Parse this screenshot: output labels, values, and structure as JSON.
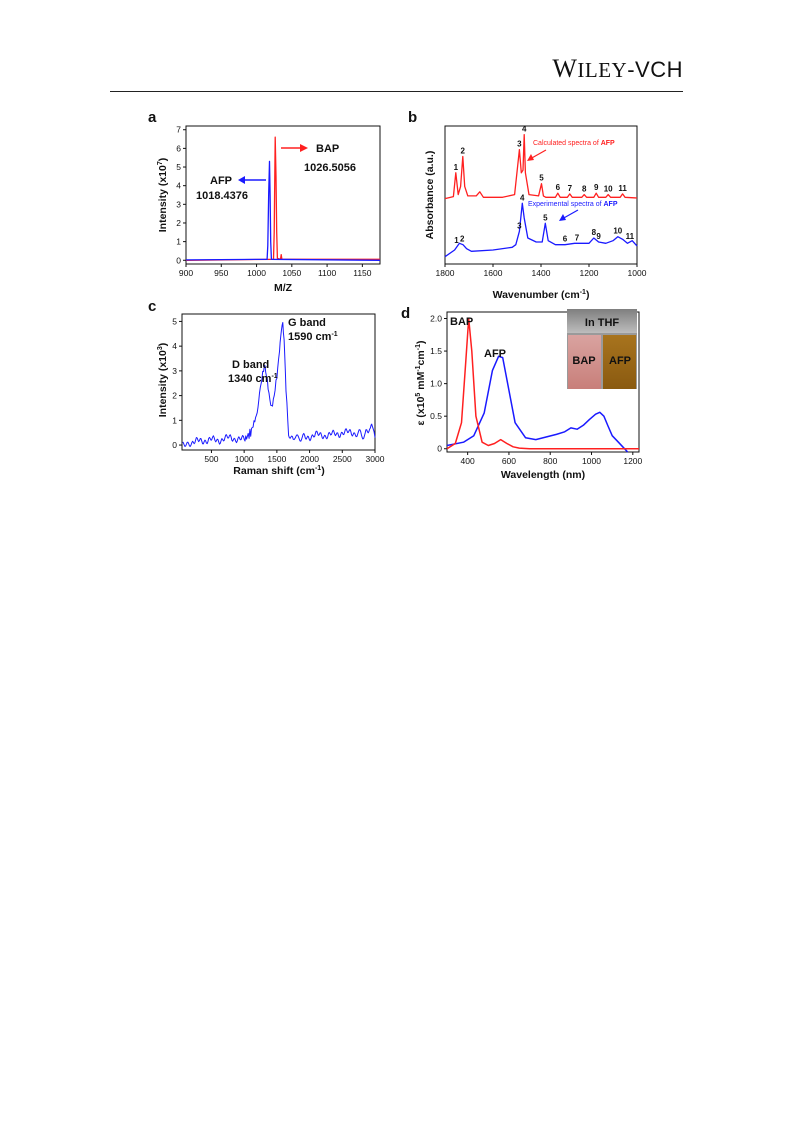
{
  "header": {
    "logo": {
      "W": "W",
      "ILEY": "ILEY",
      "vch": "-VCH"
    }
  },
  "chart_data": [
    {
      "panel": "a",
      "type": "line",
      "xlabel": "M/Z",
      "ylabel": "Intensity (x10",
      "ylabel_sup": "7",
      "ylabel_end": ")",
      "xlim": [
        900,
        1175
      ],
      "ylim": [
        -0.2,
        7.2
      ],
      "xticks": [
        900,
        950,
        1000,
        1050,
        1100,
        1150
      ],
      "yticks": [
        0,
        1,
        2,
        3,
        4,
        5,
        6,
        7
      ],
      "series": [
        {
          "color": "#1a1aff",
          "x": [
            900,
            1015.0,
            1016.0,
            1017.2,
            1018.4,
            1019.2,
            1020.0,
            1021.0,
            1175
          ],
          "y": [
            0.02,
            0.05,
            0.8,
            3.6,
            5.3,
            3.5,
            1.0,
            0.05,
            0.0
          ]
        },
        {
          "color": "#ff2020",
          "x": [
            900,
            1024.0,
            1025.0,
            1026.5,
            1027.6,
            1028.6,
            1029.6,
            1034.0,
            1035.0,
            1036.0,
            1175
          ],
          "y": [
            0.0,
            0.05,
            1.5,
            6.6,
            4.5,
            1.5,
            0.1,
            0.05,
            0.3,
            0.05,
            0.05
          ]
        }
      ],
      "annotations": {
        "afp": "AFP",
        "afp_value": "1018.4376",
        "bap": "BAP",
        "bap_value": "1026.5056"
      }
    },
    {
      "panel": "b",
      "type": "line",
      "xlabel": "Wavenumber (cm",
      "xlabel_sup": "-1",
      "xlabel_end": ")",
      "ylabel": "Absorbance (a.u.)",
      "xlim": [
        1800,
        1000
      ],
      "xticks": [
        1800,
        1600,
        1400,
        1200,
        1000
      ],
      "series": [
        {
          "name": "Calculated spectra of AFP",
          "color": "#ff2020",
          "x": [
            1800,
            1765,
            1755,
            1745,
            1735,
            1726,
            1718,
            1705,
            1670,
            1655,
            1640,
            1560,
            1510,
            1490,
            1482,
            1475,
            1470,
            1465,
            1450,
            1410,
            1398,
            1390,
            1380,
            1340,
            1330,
            1320,
            1290,
            1280,
            1270,
            1230,
            1220,
            1210,
            1180,
            1170,
            1160,
            1130,
            1120,
            1110,
            1070,
            1060,
            1050,
            1000
          ],
          "y": [
            0.1,
            0.25,
            2.0,
            0.4,
            1.0,
            3.2,
            1.0,
            0.3,
            0.3,
            0.6,
            0.2,
            0.2,
            0.4,
            3.7,
            2.0,
            2.2,
            4.8,
            2.0,
            0.4,
            0.3,
            1.2,
            0.3,
            0.2,
            0.2,
            0.5,
            0.2,
            0.2,
            0.45,
            0.2,
            0.2,
            0.4,
            0.2,
            0.2,
            0.5,
            0.2,
            0.2,
            0.4,
            0.2,
            0.2,
            0.45,
            0.2,
            0.15
          ]
        },
        {
          "name": "Experimental spectra of AFP",
          "color": "#1a1aff",
          "x": [
            1800,
            1760,
            1740,
            1725,
            1710,
            1690,
            1600,
            1520,
            1505,
            1490,
            1478,
            1470,
            1455,
            1420,
            1395,
            1382,
            1370,
            1340,
            1300,
            1260,
            1200,
            1180,
            1160,
            1130,
            1100,
            1080,
            1060,
            1040,
            1020,
            1000
          ],
          "y": [
            0.1,
            0.6,
            1.1,
            1.0,
            0.7,
            0.5,
            0.6,
            0.8,
            1.0,
            2.0,
            4.1,
            3.0,
            1.5,
            1.2,
            1.2,
            2.6,
            1.3,
            1.0,
            1.0,
            1.1,
            1.1,
            1.5,
            1.2,
            1.1,
            1.3,
            1.6,
            1.4,
            1.1,
            1.3,
            0.9
          ]
        }
      ],
      "peak_labels": [
        "1",
        "2",
        "3",
        "4",
        "5",
        "6",
        "7",
        "8",
        "9",
        "10",
        "11"
      ],
      "legend": {
        "calc": "Calculated spectra of ",
        "exp": "Experimental spectra of ",
        "afp": "AFP"
      }
    },
    {
      "panel": "c",
      "type": "line",
      "xlabel": "Raman shift (cm",
      "xlabel_sup": "-1",
      "xlabel_end": ")",
      "ylabel": "Intensity (x10",
      "ylabel_sup": "3",
      "ylabel_end": ")",
      "xlim": [
        50,
        3000
      ],
      "ylim": [
        -0.2,
        5.3
      ],
      "xticks": [
        500,
        1000,
        1500,
        2000,
        2500,
        3000
      ],
      "yticks": [
        0,
        1,
        2,
        3,
        4,
        5
      ],
      "series": [
        {
          "color": "#1a1aff",
          "x": [
            60,
            200,
            400,
            600,
            800,
            1000,
            1100,
            1200,
            1270,
            1310,
            1340,
            1380,
            1420,
            1460,
            1500,
            1540,
            1570,
            1590,
            1610,
            1640,
            1680,
            1750,
            1900,
            2100,
            2300,
            2500,
            2700,
            2850,
            2930,
            2960,
            3000
          ],
          "y": [
            0.0,
            0.1,
            0.2,
            0.2,
            0.3,
            0.2,
            0.5,
            1.3,
            2.6,
            3.2,
            2.8,
            2.0,
            1.6,
            1.9,
            2.8,
            3.9,
            4.7,
            4.8,
            4.4,
            2.2,
            0.5,
            0.3,
            0.3,
            0.4,
            0.4,
            0.5,
            0.5,
            0.4,
            0.7,
            0.9,
            0.3
          ]
        }
      ],
      "annotations": {
        "d_band": "D band",
        "d_value": "1340 cm",
        "g_band": "G band",
        "g_value": "1590 cm",
        "unit_sup": "-1"
      }
    },
    {
      "panel": "d",
      "type": "line",
      "xlabel": "Wavelength (nm)",
      "ylabel_pre": "ε (x10",
      "ylabel_sup": "5",
      "ylabel_mid": " mM",
      "ylabel_sup2": "-1",
      "ylabel_cm": "cm",
      "ylabel_sup3": "-1",
      "ylabel_end": ")",
      "xlim": [
        300,
        1230
      ],
      "ylim": [
        -0.05,
        2.1
      ],
      "xticks": [
        400,
        600,
        800,
        1000,
        1200
      ],
      "yticks": [
        0,
        0.5,
        1.0,
        1.5,
        2.0
      ],
      "ytick_labels": [
        "0",
        "0.5",
        "1.0",
        "1.5",
        "2.0"
      ],
      "series": [
        {
          "name": "BAP",
          "color": "#ff2020",
          "x": [
            300,
            340,
            370,
            390,
            405,
            420,
            440,
            470,
            500,
            530,
            560,
            590,
            620,
            650,
            700,
            1230
          ],
          "y": [
            0.0,
            0.08,
            0.4,
            1.3,
            2.0,
            1.5,
            0.5,
            0.1,
            0.05,
            0.08,
            0.14,
            0.08,
            0.03,
            0.01,
            0.0,
            0.0
          ]
        },
        {
          "name": "AFP",
          "color": "#1a1aff",
          "x": [
            300,
            380,
            430,
            480,
            520,
            550,
            570,
            600,
            630,
            680,
            730,
            780,
            830,
            870,
            900,
            930,
            960,
            990,
            1020,
            1040,
            1060,
            1080,
            1100,
            1130,
            1160,
            1175
          ],
          "y": [
            0.05,
            0.1,
            0.2,
            0.55,
            1.2,
            1.42,
            1.4,
            0.9,
            0.4,
            0.17,
            0.14,
            0.18,
            0.22,
            0.26,
            0.32,
            0.3,
            0.36,
            0.45,
            0.53,
            0.56,
            0.5,
            0.35,
            0.2,
            0.1,
            0.0,
            -0.05
          ]
        }
      ],
      "annotations": {
        "bap": "BAP",
        "afp": "AFP"
      },
      "inset": {
        "title": "In THF",
        "left": "BAP",
        "right": "AFP"
      }
    }
  ],
  "panel_labels": [
    "a",
    "b",
    "c",
    "d"
  ],
  "colors": {
    "red": "#ff2020",
    "blue": "#1a1aff",
    "axis": "#111111"
  }
}
